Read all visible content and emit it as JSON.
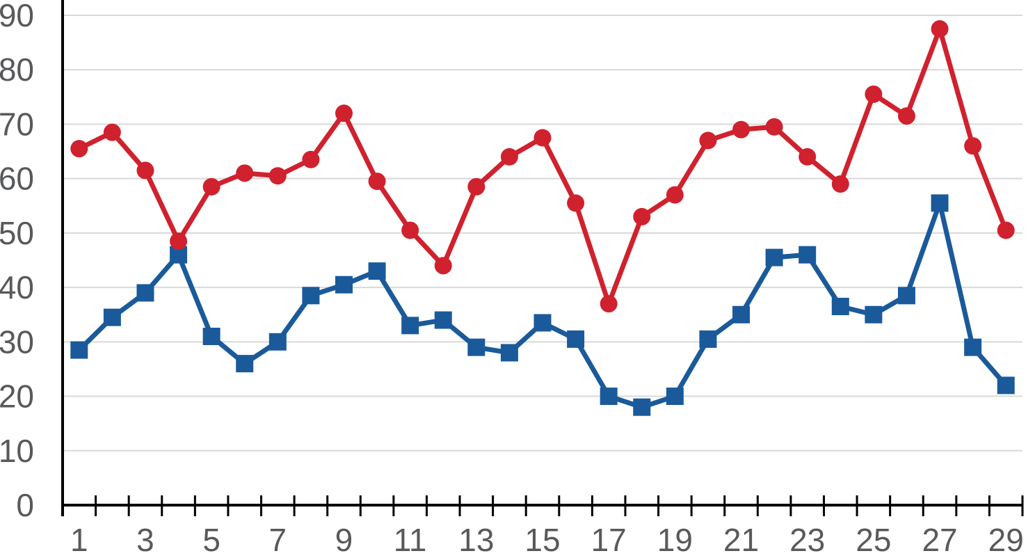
{
  "chart_data": {
    "type": "line",
    "title": "",
    "xlabel": "",
    "ylabel": "",
    "x": [
      1,
      2,
      3,
      4,
      5,
      6,
      7,
      8,
      9,
      10,
      11,
      12,
      13,
      14,
      15,
      16,
      17,
      18,
      19,
      20,
      21,
      22,
      23,
      24,
      25,
      26,
      27,
      28,
      29
    ],
    "series": [
      {
        "name": "red-series",
        "marker": "circle",
        "color": "#D0212E",
        "values": [
          65.5,
          68.5,
          61.5,
          48.5,
          58.5,
          61,
          60.5,
          63.5,
          72,
          59.5,
          50.5,
          44,
          58.5,
          64,
          67.5,
          55.5,
          37,
          53,
          57,
          67,
          69,
          69.5,
          64,
          59,
          75.5,
          71.5,
          87.5,
          66,
          50.5
        ]
      },
      {
        "name": "blue-series",
        "marker": "square",
        "color": "#1A5A9A",
        "values": [
          28.5,
          34.5,
          39,
          46,
          31,
          26,
          30,
          38.5,
          40.5,
          43,
          33,
          34,
          29,
          28,
          33.5,
          30.5,
          20,
          18,
          20,
          30.5,
          35,
          45.5,
          46,
          36.5,
          35,
          38.5,
          55.5,
          29,
          22
        ]
      }
    ],
    "ylim": [
      0,
      90
    ],
    "ytick_step": 10,
    "ytick_labels": [
      "0",
      "10",
      "20",
      "30",
      "40",
      "50",
      "60",
      "70",
      "80",
      "90"
    ],
    "xtick_labels": [
      "1",
      "3",
      "5",
      "7",
      "9",
      "11",
      "13",
      "15",
      "17",
      "19",
      "21",
      "23",
      "25",
      "27",
      "29"
    ],
    "grid": "horizontal",
    "legend": "none",
    "colors": {
      "gridline": "#D8D8D8",
      "axis": "#000000",
      "tick_label": "#58595B"
    }
  }
}
